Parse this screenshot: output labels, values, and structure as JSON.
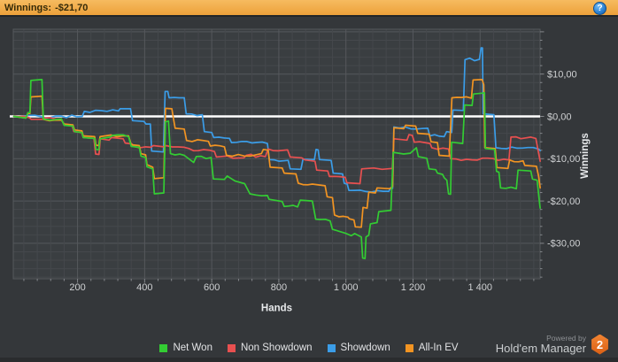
{
  "header": {
    "title_label": "Winnings:",
    "title_value": "-$21,70",
    "help_icon": "?"
  },
  "colors": {
    "top_bar": "#f0a948",
    "background": "#34373a",
    "plot_background": "#3a3e41",
    "grid_minor": "#45484c",
    "grid_major": "#55585c",
    "plot_border": "#55585c",
    "zero_line": "#ffffff",
    "axis_text": "#cfd1d3",
    "net_won": "#33cc33",
    "non_showdown": "#e85050",
    "showdown": "#3b9de8",
    "all_in_ev": "#f29422"
  },
  "chart_data": {
    "type": "line",
    "title": "",
    "xlabel": "Hands",
    "ylabel": "Winnings",
    "xlim": [
      0,
      1580
    ],
    "ylim": [
      -38.5,
      20.7
    ],
    "grid": "on",
    "legend_position": "bottom",
    "zero_line": 0,
    "x_ticks": [
      200,
      400,
      600,
      800,
      1000,
      1200,
      1400
    ],
    "x_tick_labels": [
      "200",
      "400",
      "600",
      "800",
      "1 000",
      "1 200",
      "1 400"
    ],
    "y_ticks": [
      10,
      0,
      -10,
      -20,
      -30
    ],
    "y_tick_labels": [
      "$10,00",
      "$0,00",
      "-$10,00",
      "-$20,00",
      "-$30,00"
    ],
    "x_minor_step": 40,
    "y_minor_step": 2,
    "series": [
      {
        "name": "Net Won",
        "color": "#33cc33",
        "points": [
          [
            10,
            0
          ],
          [
            46,
            -0.4
          ],
          [
            52,
            0.9
          ],
          [
            58,
            0.9
          ],
          [
            61,
            8.5
          ],
          [
            94,
            8.7
          ],
          [
            98,
            -0.6
          ],
          [
            118,
            -0.9
          ],
          [
            152,
            -0.6
          ],
          [
            160,
            -2.1
          ],
          [
            186,
            -2.3
          ],
          [
            191,
            -3.6
          ],
          [
            213,
            -3.8
          ],
          [
            217,
            -5
          ],
          [
            251,
            -5.2
          ],
          [
            255,
            -7.8
          ],
          [
            263,
            -7.9
          ],
          [
            267,
            -5.3
          ],
          [
            297,
            -4.9
          ],
          [
            304,
            -4.5
          ],
          [
            352,
            -4.8
          ],
          [
            360,
            -7.1
          ],
          [
            384,
            -7.3
          ],
          [
            389,
            -9.4
          ],
          [
            403,
            -9.7
          ],
          [
            407,
            -11.9
          ],
          [
            424,
            -12.4
          ],
          [
            429,
            -18.3
          ],
          [
            457,
            -18.1
          ],
          [
            462,
            -1.3
          ],
          [
            471,
            -1.1
          ],
          [
            477,
            -8.8
          ],
          [
            518,
            -9.2
          ],
          [
            546,
            -10.9
          ],
          [
            554,
            -9.5
          ],
          [
            598,
            -9.7
          ],
          [
            605,
            -14.8
          ],
          [
            638,
            -14.9
          ],
          [
            646,
            -14.1
          ],
          [
            656,
            -14.6
          ],
          [
            670,
            -15.3
          ],
          [
            698,
            -15.9
          ],
          [
            714,
            -18.3
          ],
          [
            766,
            -18.7
          ],
          [
            771,
            -19.6
          ],
          [
            810,
            -20.1
          ],
          [
            816,
            -21.3
          ],
          [
            856,
            -21.4
          ],
          [
            864,
            -19.8
          ],
          [
            900,
            -20
          ],
          [
            910,
            -24.3
          ],
          [
            953,
            -24.7
          ],
          [
            960,
            -26.7
          ],
          [
            998,
            -27.6
          ],
          [
            1016,
            -28.2
          ],
          [
            1026,
            -27.7
          ],
          [
            1046,
            -28.5
          ],
          [
            1050,
            -33.5
          ],
          [
            1057,
            -33.6
          ],
          [
            1060,
            -28.5
          ],
          [
            1068,
            -28.1
          ],
          [
            1073,
            -25.4
          ],
          [
            1093,
            -25.1
          ],
          [
            1098,
            -22.5
          ],
          [
            1134,
            -22.2
          ],
          [
            1141,
            -8.5
          ],
          [
            1172,
            -8.9
          ],
          [
            1192,
            -8.7
          ],
          [
            1210,
            -7.4
          ],
          [
            1216,
            -9.5
          ],
          [
            1241,
            -9.9
          ],
          [
            1248,
            -12.4
          ],
          [
            1268,
            -12.6
          ],
          [
            1273,
            -13.4
          ],
          [
            1288,
            -13.7
          ],
          [
            1293,
            -14.5
          ],
          [
            1301,
            -15.1
          ],
          [
            1306,
            -18.3
          ],
          [
            1312,
            -18.4
          ],
          [
            1315,
            -6.1
          ],
          [
            1348,
            -6.4
          ],
          [
            1354,
            2.7
          ],
          [
            1376,
            2.6
          ],
          [
            1380,
            5.3
          ],
          [
            1408,
            5.5
          ],
          [
            1413,
            5.6
          ],
          [
            1416,
            -7.6
          ],
          [
            1443,
            -7.8
          ],
          [
            1449,
            -13
          ],
          [
            1456,
            -13.2
          ],
          [
            1461,
            -16.9
          ],
          [
            1508,
            -17.1
          ],
          [
            1513,
            -12.7
          ],
          [
            1551,
            -12.9
          ],
          [
            1556,
            -14.8
          ],
          [
            1570,
            -15.1
          ],
          [
            1575,
            -19
          ],
          [
            1579,
            -21.7
          ]
        ]
      },
      {
        "name": "Non Showdown",
        "color": "#e85050",
        "points": [
          [
            10,
            0
          ],
          [
            56,
            -0.3
          ],
          [
            62,
            -0.7
          ],
          [
            94,
            -0.7
          ],
          [
            100,
            -0.4
          ],
          [
            152,
            -0.7
          ],
          [
            160,
            -2
          ],
          [
            184,
            -2.2
          ],
          [
            189,
            -3.6
          ],
          [
            212,
            -3.8
          ],
          [
            217,
            -5
          ],
          [
            249,
            -5.2
          ],
          [
            254,
            -8.9
          ],
          [
            264,
            -9
          ],
          [
            268,
            -5.3
          ],
          [
            294,
            -5.6
          ],
          [
            301,
            -5
          ],
          [
            336,
            -5.3
          ],
          [
            342,
            -6.3
          ],
          [
            362,
            -6.5
          ],
          [
            368,
            -7.1
          ],
          [
            418,
            -7.3
          ],
          [
            426,
            -6.9
          ],
          [
            458,
            -7.2
          ],
          [
            464,
            -6.9
          ],
          [
            518,
            -7.3
          ],
          [
            560,
            -8.1
          ],
          [
            608,
            -8.3
          ],
          [
            614,
            -9.6
          ],
          [
            696,
            -9.8
          ],
          [
            703,
            -9.2
          ],
          [
            760,
            -9.5
          ],
          [
            768,
            -7.7
          ],
          [
            826,
            -7.9
          ],
          [
            834,
            -9.6
          ],
          [
            868,
            -9.8
          ],
          [
            878,
            -10.3
          ],
          [
            908,
            -10.6
          ],
          [
            913,
            -12.7
          ],
          [
            946,
            -12.9
          ],
          [
            951,
            -14.2
          ],
          [
            998,
            -14.4
          ],
          [
            1003,
            -15.7
          ],
          [
            1042,
            -15.9
          ],
          [
            1047,
            -12.4
          ],
          [
            1083,
            -12.2
          ],
          [
            1108,
            -12.5
          ],
          [
            1138,
            -12.3
          ],
          [
            1143,
            -5.3
          ],
          [
            1182,
            -5.6
          ],
          [
            1188,
            -4.3
          ],
          [
            1198,
            -4.5
          ],
          [
            1204,
            -6.1
          ],
          [
            1251,
            -6.4
          ],
          [
            1256,
            -7.4
          ],
          [
            1306,
            -7.7
          ],
          [
            1312,
            -10
          ],
          [
            1486,
            -10.3
          ],
          [
            1492,
            -4.9
          ],
          [
            1566,
            -5.2
          ],
          [
            1573,
            -8.1
          ],
          [
            1579,
            -10.6
          ]
        ]
      },
      {
        "name": "Showdown",
        "color": "#3b9de8",
        "points": [
          [
            10,
            0
          ],
          [
            214,
            0
          ],
          [
            220,
            1.2
          ],
          [
            322,
            1.3
          ],
          [
            327,
            1.8
          ],
          [
            358,
            1.8
          ],
          [
            364,
            -1
          ],
          [
            398,
            -1.2
          ],
          [
            404,
            -1.8
          ],
          [
            417,
            -1.8
          ],
          [
            421,
            -8.2
          ],
          [
            456,
            -8.4
          ],
          [
            461,
            5.9
          ],
          [
            469,
            5.9
          ],
          [
            473,
            4.4
          ],
          [
            518,
            4.4
          ],
          [
            524,
            0.6
          ],
          [
            572,
            0.4
          ],
          [
            578,
            -3.6
          ],
          [
            600,
            -3.8
          ],
          [
            606,
            -5
          ],
          [
            653,
            -5.2
          ],
          [
            659,
            -6.2
          ],
          [
            766,
            -6.4
          ],
          [
            772,
            -10.2
          ],
          [
            828,
            -10.4
          ],
          [
            834,
            -12.4
          ],
          [
            866,
            -12.5
          ],
          [
            872,
            -10.1
          ],
          [
            906,
            -10.2
          ],
          [
            911,
            -7.8
          ],
          [
            917,
            -7.9
          ],
          [
            921,
            -10.2
          ],
          [
            956,
            -10.4
          ],
          [
            962,
            -13.4
          ],
          [
            990,
            -13.6
          ],
          [
            995,
            -15.8
          ],
          [
            1004,
            -16
          ],
          [
            1009,
            -17.5
          ],
          [
            1128,
            -17.7
          ],
          [
            1133,
            -16.9
          ],
          [
            1139,
            -17
          ],
          [
            1143,
            -2.5
          ],
          [
            1244,
            -2.8
          ],
          [
            1250,
            -4.6
          ],
          [
            1293,
            -4.8
          ],
          [
            1300,
            -3.6
          ],
          [
            1315,
            -3.8
          ],
          [
            1319,
            1.5
          ],
          [
            1350,
            1.4
          ],
          [
            1355,
            13.4
          ],
          [
            1398,
            13.5
          ],
          [
            1403,
            16.2
          ],
          [
            1407,
            16.2
          ],
          [
            1409,
            0.6
          ],
          [
            1441,
            0.4
          ],
          [
            1447,
            -7.4
          ],
          [
            1574,
            -7.7
          ],
          [
            1579,
            -8.1
          ]
        ]
      },
      {
        "name": "All-In EV",
        "color": "#f29422",
        "points": [
          [
            10,
            0
          ],
          [
            46,
            -0.4
          ],
          [
            52,
            0.7
          ],
          [
            58,
            0.7
          ],
          [
            61,
            4.6
          ],
          [
            94,
            4.8
          ],
          [
            98,
            -0.7
          ],
          [
            152,
            -0.9
          ],
          [
            160,
            -1.8
          ],
          [
            186,
            -2
          ],
          [
            191,
            -3.2
          ],
          [
            213,
            -3.4
          ],
          [
            217,
            -4.6
          ],
          [
            251,
            -4.8
          ],
          [
            255,
            -6.8
          ],
          [
            263,
            -6.9
          ],
          [
            267,
            -4.8
          ],
          [
            300,
            -4.4
          ],
          [
            352,
            -4.6
          ],
          [
            360,
            -6.7
          ],
          [
            384,
            -6.9
          ],
          [
            389,
            -8.8
          ],
          [
            403,
            -9.1
          ],
          [
            407,
            -11.4
          ],
          [
            424,
            -12
          ],
          [
            429,
            -14.7
          ],
          [
            457,
            -14.5
          ],
          [
            462,
            1.9
          ],
          [
            481,
            1.8
          ],
          [
            486,
            -0.5
          ],
          [
            491,
            -2.8
          ],
          [
            518,
            -3
          ],
          [
            525,
            -5.7
          ],
          [
            590,
            -5.9
          ],
          [
            596,
            -7
          ],
          [
            638,
            -7.2
          ],
          [
            644,
            -9.2
          ],
          [
            714,
            -9.4
          ],
          [
            748,
            -8.8
          ],
          [
            754,
            -7.8
          ],
          [
            768,
            -8
          ],
          [
            774,
            -12
          ],
          [
            810,
            -12.2
          ],
          [
            816,
            -13.4
          ],
          [
            851,
            -13.6
          ],
          [
            858,
            -15.8
          ],
          [
            900,
            -16
          ],
          [
            938,
            -16.4
          ],
          [
            944,
            -19
          ],
          [
            960,
            -19.2
          ],
          [
            966,
            -23.3
          ],
          [
            1006,
            -23.8
          ],
          [
            1010,
            -24.2
          ],
          [
            1024,
            -24.5
          ],
          [
            1028,
            -26.1
          ],
          [
            1046,
            -26.2
          ],
          [
            1051,
            -21.5
          ],
          [
            1063,
            -21.7
          ],
          [
            1068,
            -17.9
          ],
          [
            1088,
            -18.1
          ],
          [
            1093,
            -16.9
          ],
          [
            1131,
            -17.1
          ],
          [
            1139,
            -16.6
          ],
          [
            1143,
            -2.7
          ],
          [
            1172,
            -2.9
          ],
          [
            1178,
            -2.1
          ],
          [
            1208,
            -2.3
          ],
          [
            1214,
            -4
          ],
          [
            1248,
            -4.2
          ],
          [
            1254,
            -6
          ],
          [
            1273,
            -6.2
          ],
          [
            1278,
            -9.2
          ],
          [
            1308,
            -9.4
          ],
          [
            1316,
            4.4
          ],
          [
            1374,
            4.3
          ],
          [
            1379,
            8.6
          ],
          [
            1406,
            8.7
          ],
          [
            1411,
            7.5
          ],
          [
            1414,
            -7.4
          ],
          [
            1445,
            -7.6
          ],
          [
            1450,
            -12.1
          ],
          [
            1483,
            -12.3
          ],
          [
            1488,
            -10.3
          ],
          [
            1528,
            -10.5
          ],
          [
            1533,
            -11.6
          ],
          [
            1568,
            -11.8
          ],
          [
            1574,
            -14
          ],
          [
            1579,
            -16.9
          ]
        ]
      }
    ]
  },
  "footer": {
    "powered_by": "Powered by",
    "brand": "Hold'em Manager",
    "badge": "2"
  }
}
